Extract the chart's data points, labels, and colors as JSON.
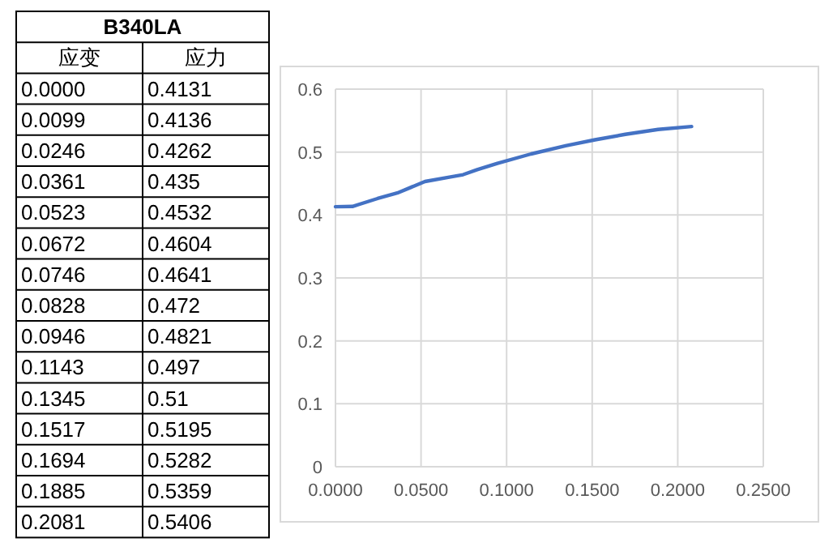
{
  "chart_data": [
    {
      "type": "other",
      "title": "B340LA",
      "annotations": [
        "应变",
        "应力",
        "0.0000",
        "0.4131",
        "0.0099",
        "0.4136",
        "0.0246",
        "0.4262",
        "0.0361",
        "0.435",
        "0.0523",
        "0.4532",
        "0.0672",
        "0.4604",
        "0.0746",
        "0.4641",
        "0.0828",
        "0.472",
        "0.0946",
        "0.4821",
        "0.1143",
        "0.497",
        "0.1345",
        "0.51",
        "0.1517",
        "0.5195",
        "0.1694",
        "0.5282",
        "0.1885",
        "0.5359",
        "0.2081",
        "0.5406"
      ]
    },
    {
      "type": "line",
      "x": [
        0.0,
        0.0099,
        0.0246,
        0.0361,
        0.0523,
        0.0672,
        0.0746,
        0.0828,
        0.0946,
        0.1143,
        0.1345,
        0.1517,
        0.1694,
        0.1885,
        0.2081
      ],
      "series": [
        {
          "color": "#4472c4",
          "values": [
            0.4131,
            0.4136,
            0.4262,
            0.435,
            0.4532,
            0.4604,
            0.4641,
            0.472,
            0.4821,
            0.497,
            0.51,
            0.5195,
            0.5282,
            0.5359,
            0.5406
          ]
        }
      ],
      "xlim": [
        0,
        0.25
      ],
      "xticks": [
        {
          "value": 0,
          "label": "0.0000"
        },
        {
          "value": 0.05,
          "label": "0.0500"
        },
        {
          "value": 0.1,
          "label": "0.1000"
        },
        {
          "value": 0.15,
          "label": "0.1500"
        },
        {
          "value": 0.2,
          "label": "0.2000"
        },
        {
          "value": 0.25,
          "label": "0.2500"
        }
      ],
      "ylim": [
        0,
        0.6
      ],
      "yticks": [
        0,
        0.1,
        0.2,
        0.3,
        0.4,
        0.5,
        0.6
      ],
      "grid": true,
      "marker": "none",
      "line_style": "solid"
    }
  ]
}
